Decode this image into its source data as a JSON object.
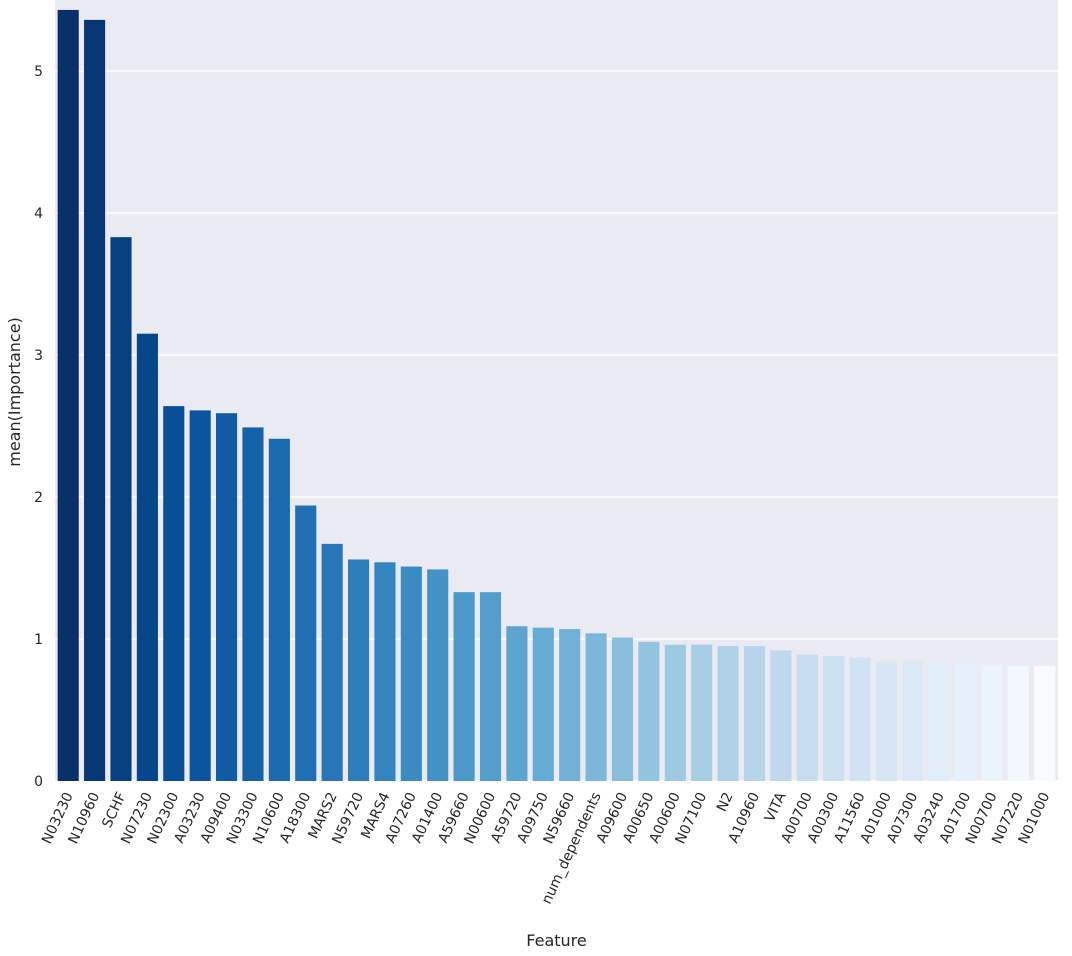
{
  "chart_data": {
    "type": "bar",
    "xlabel": "Feature",
    "ylabel": "mean(Importance)",
    "ylim": [
      0,
      5.5
    ],
    "yticks": [
      0,
      1,
      2,
      3,
      4,
      5
    ],
    "grid": "horizontal",
    "palette": "Blues_r",
    "background": "#eaeaf2",
    "categories": [
      "N03230",
      "N10960",
      "SCHF",
      "N07230",
      "N02300",
      "A03230",
      "A09400",
      "N03300",
      "N10600",
      "A18300",
      "MARS2",
      "N59720",
      "MARS4",
      "A07260",
      "A01400",
      "A59660",
      "N00600",
      "A59720",
      "A09750",
      "N59660",
      "num_dependents",
      "A09600",
      "A00650",
      "A00600",
      "N07100",
      "N2",
      "A10960",
      "VITA",
      "A00700",
      "A00300",
      "A11560",
      "A01000",
      "A07300",
      "A03240",
      "A01700",
      "N00700",
      "N07220",
      "N01000"
    ],
    "values": [
      5.43,
      5.36,
      3.83,
      3.15,
      2.64,
      2.61,
      2.59,
      2.49,
      2.41,
      1.94,
      1.67,
      1.56,
      1.54,
      1.51,
      1.49,
      1.33,
      1.33,
      1.09,
      1.08,
      1.07,
      1.04,
      1.01,
      0.98,
      0.96,
      0.96,
      0.95,
      0.95,
      0.92,
      0.89,
      0.88,
      0.87,
      0.84,
      0.84,
      0.83,
      0.83,
      0.82,
      0.81,
      0.81
    ]
  }
}
